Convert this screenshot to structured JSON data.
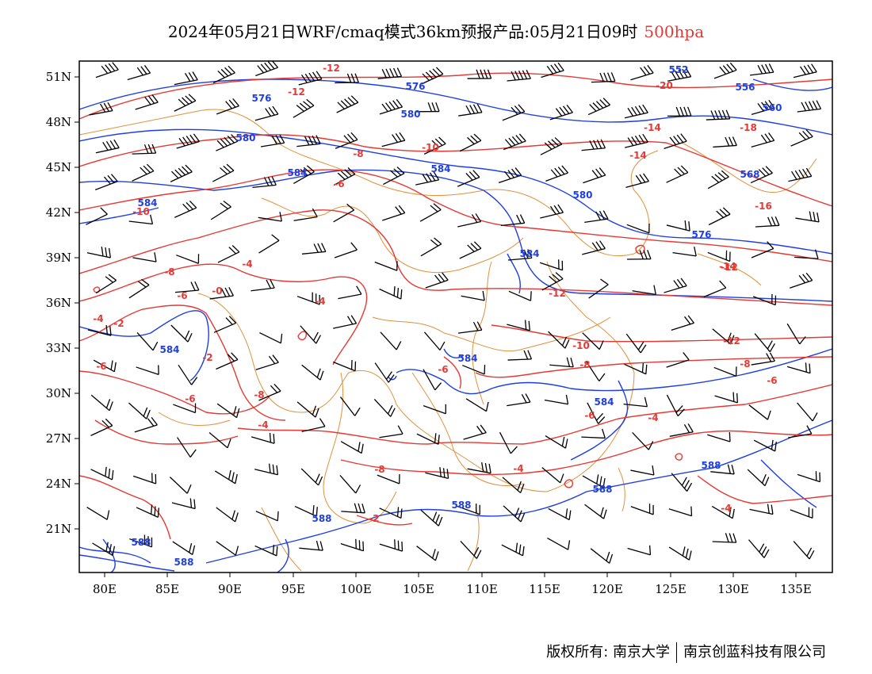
{
  "title": {
    "main": "2024年05月21日WRF/cmaq模式36km预报产品:05月21日09时",
    "level": "500hpa"
  },
  "axes": {
    "x_labels": [
      "80E",
      "85E",
      "90E",
      "95E",
      "100E",
      "105E",
      "110E",
      "115E",
      "120E",
      "125E",
      "130E",
      "135E"
    ],
    "y_labels": [
      "51N",
      "48N",
      "45N",
      "42N",
      "39N",
      "36N",
      "33N",
      "30N",
      "27N",
      "24N",
      "21N"
    ]
  },
  "colors": {
    "height": "#1f3fe0",
    "temperature": "#e53935",
    "boundary": "#e0913c",
    "wind": "#000000"
  },
  "height_labels": [
    "552",
    "556",
    "560",
    "568",
    "576",
    "576",
    "576",
    "580",
    "580",
    "580",
    "584",
    "584",
    "584",
    "584",
    "584",
    "584",
    "584",
    "588",
    "588",
    "588",
    "588",
    "588",
    "588"
  ],
  "temp_labels": [
    "-12",
    "-12",
    "-14",
    "-20",
    "-18",
    "-10",
    "-14",
    "-8",
    "-10",
    "-6",
    "-12",
    "-14",
    "-8",
    "-16",
    "-4",
    "-12",
    "-6",
    "-0",
    "-4",
    "-12",
    "-2",
    "-4",
    "-6",
    "-4",
    "-2",
    "-10",
    "-8",
    "-6",
    "-8",
    "-6",
    "-8",
    "-6",
    "-4",
    "-8",
    "-6",
    "-4",
    "-4",
    "-2"
  ],
  "footer": {
    "copyright": "版权所有: 南京大学",
    "company": "南京创蓝科技有限公司"
  }
}
